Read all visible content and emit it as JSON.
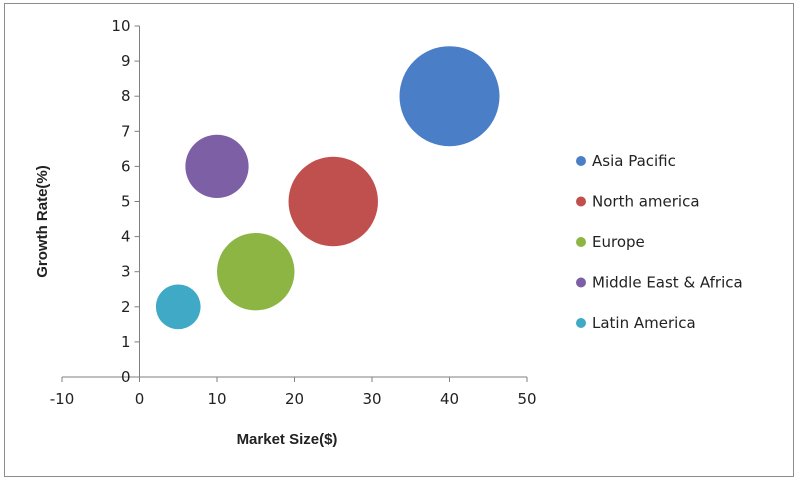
{
  "chart_data": {
    "type": "bubble",
    "title": "",
    "xlabel": "Market Size($)",
    "ylabel": "Growth Rate(%)",
    "xlim": [
      -10,
      50
    ],
    "ylim": [
      0,
      10
    ],
    "xticks": [
      -10,
      0,
      10,
      20,
      30,
      40,
      50
    ],
    "yticks": [
      0,
      1,
      2,
      3,
      4,
      5,
      6,
      7,
      8,
      9,
      10
    ],
    "grid": false,
    "legend_position": "right",
    "series": [
      {
        "name": "Asia Pacific",
        "x": 40,
        "y": 8,
        "size": 5.0,
        "color": "#4a7ec6"
      },
      {
        "name": "North america",
        "x": 25,
        "y": 5,
        "size": 4.0,
        "color": "#c0504d"
      },
      {
        "name": "Europe",
        "x": 15,
        "y": 3,
        "size": 3.0,
        "color": "#8db543"
      },
      {
        "name": "Middle East & Africa",
        "x": 10,
        "y": 6,
        "size": 2.0,
        "color": "#7d5fa5"
      },
      {
        "name": "Latin America",
        "x": 5,
        "y": 2,
        "size": 1.0,
        "color": "#3fa9c6"
      }
    ]
  }
}
